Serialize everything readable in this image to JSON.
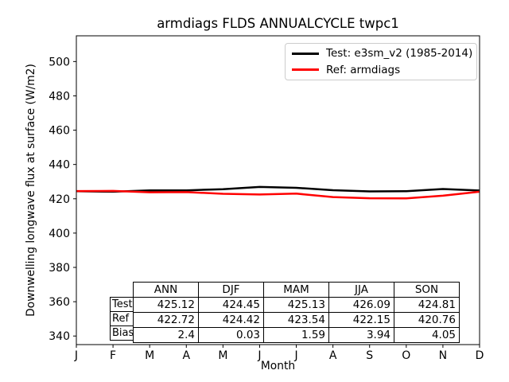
{
  "figure": {
    "title": "armdiags FLDS ANNUALCYCLE twpc1",
    "xlabel": "Month",
    "ylabel": "Downwelling longwave flux at surface (W/m2)"
  },
  "legend": {
    "items": [
      {
        "name": "test",
        "label": "Test: e3sm_v2 (1985-2014)",
        "color": "#000000"
      },
      {
        "name": "ref",
        "label": "Ref: armdiags",
        "color": "#ff0000"
      }
    ]
  },
  "chart_data": {
    "type": "line",
    "title": "armdiags FLDS ANNUALCYCLE twpc1",
    "xlabel": "Month",
    "ylabel": "Downwelling longwave flux at surface (W/m2)",
    "x_tick_labels": [
      "J",
      "F",
      "M",
      "A",
      "M",
      "J",
      "J",
      "A",
      "S",
      "O",
      "N",
      "D"
    ],
    "y_ticks": [
      340,
      360,
      380,
      400,
      420,
      440,
      460,
      480,
      500
    ],
    "ylim": [
      335,
      515
    ],
    "grid": false,
    "legend_position": "upper right",
    "series": [
      {
        "name": "Test: e3sm_v2 (1985-2014)",
        "color": "#000000",
        "line_width": 2.5,
        "values": [
          424.4,
          424.1,
          424.9,
          424.9,
          425.6,
          426.9,
          426.4,
          425.0,
          424.3,
          424.4,
          425.7,
          424.8
        ]
      },
      {
        "name": "Ref: armdiags",
        "color": "#ff0000",
        "line_width": 2.5,
        "values": [
          424.5,
          424.6,
          423.8,
          423.9,
          422.9,
          422.5,
          423.0,
          421.0,
          420.3,
          420.2,
          421.8,
          424.1
        ]
      }
    ]
  },
  "stats_table": {
    "columns": [
      "ANN",
      "DJF",
      "MAM",
      "JJA",
      "SON"
    ],
    "rows": [
      {
        "label": "Test",
        "values": [
          "425.12",
          "424.45",
          "425.13",
          "426.09",
          "424.81"
        ]
      },
      {
        "label": "Ref",
        "values": [
          "422.72",
          "424.42",
          "423.54",
          "422.15",
          "420.76"
        ]
      },
      {
        "label": "Bias",
        "values": [
          "2.4",
          "0.03",
          "1.59",
          "3.94",
          "4.05"
        ]
      }
    ]
  }
}
